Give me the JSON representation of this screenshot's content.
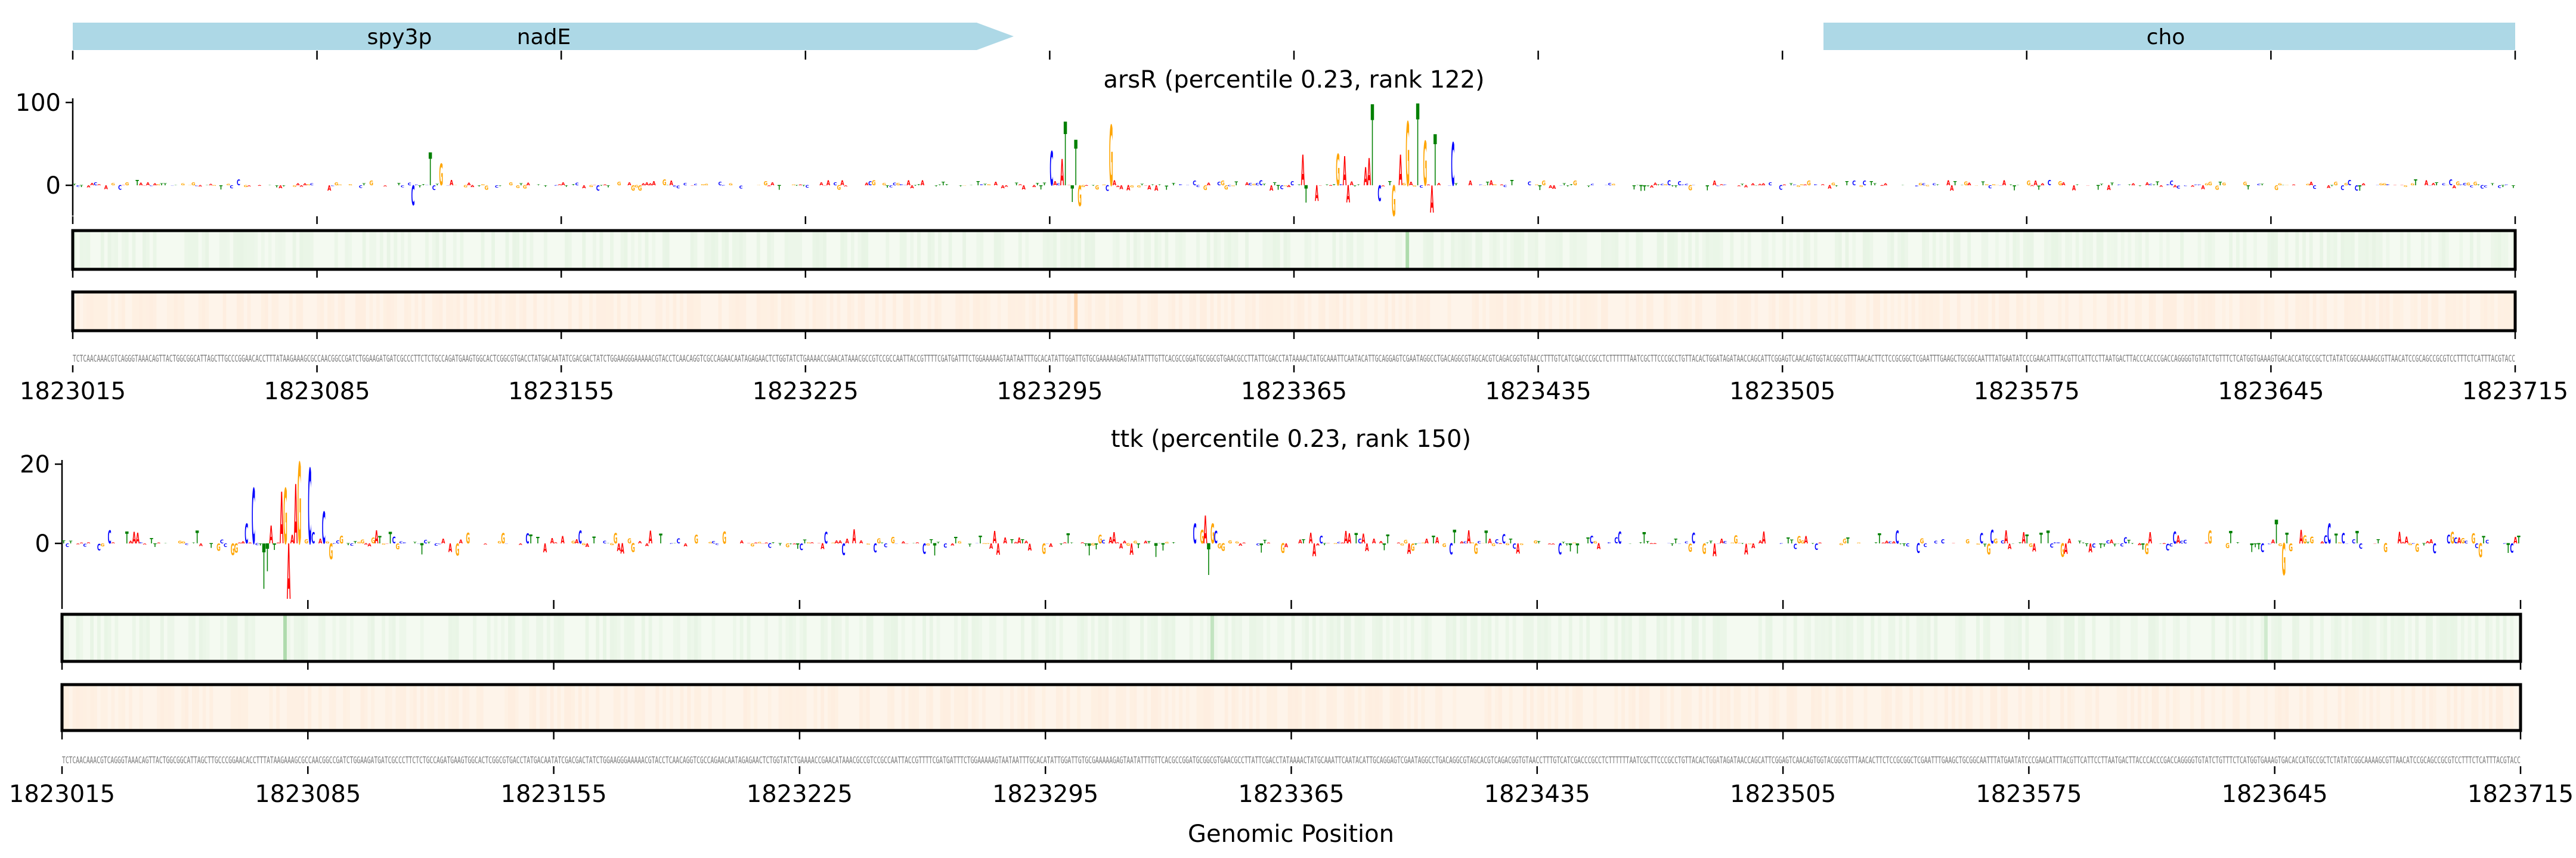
{
  "genes": [
    {
      "name": "spy3p",
      "start": 1823015,
      "end": 1823293,
      "strand": "+"
    },
    {
      "name": "nadE",
      "start": 1823015,
      "end": 1823293,
      "strand": "+"
    },
    {
      "name": "cho",
      "start": 1823520,
      "end": 1823715,
      "strand": ""
    }
  ],
  "xaxis": {
    "label": "Genomic Position",
    "range": [
      1823015,
      1823715
    ],
    "ticks": [
      "1823015",
      "1823085",
      "1823155",
      "1823225",
      "1823295",
      "1823365",
      "1823435",
      "1823505",
      "1823575",
      "1823645",
      "1823715"
    ]
  },
  "sequence": "TCTCAACAAACGTCAGGGTAAACAGTTACTGGCGGCATTAGCTTGCCCGGAACACCTTTATAAGAAAGCGCCAACGGCCGATCTGGAAGATGATCGCCCTTCTCTGCCAGATGAAGTGGCACTCGGCGTGACCTATGACAATATCGACGACTATCTGGAAGGGAAAAACGTACCTCAACAGGTCGCCAGAACAATAGAGAACTCTGGTATCTGAAAACCGAACATAAACGCCGTCCGCCAATTACCGTTTTCGATGATTTCTGGAAAAAGTAATAATTTGCACATATTGGATTGTGCGAAAAAGAGTAATATTTGTTCACGCCGGATGCGGCGTGAACGCCTTATTCGACCTATAAAACTATGCAAATTCAATACATTGCAGGAGTCGAATAGGCCTGACAGGCGTAGCACGTCAGACGGTGTAACCTTTGTCATCGACCCGCCTCTTTTTTAATCGCTTCCCGCCTGTTACACTGGATAGATAACCAGCATTCGGAGTCAACAGTGGTACGGCGTTTAACACTTCTCCGCGGCTCGAATTTGAAGCTGCGGCAATTTATGAATATCCCGAACATTTACGTTCATTCCTTAATGACTTACCCACCCGACCAGGGGTGTATCTGTTTCTCATGGTGAAAGTGACACCATGCCGCTCTATATCGGCAAAAGCGTTAACATCCGCAGCCGCGTCCTTTCTCATTTACGTACC",
  "base_colors": {
    "A": "#ff0000",
    "C": "#0000ff",
    "G": "#ffa500",
    "T": "#008000"
  },
  "chart_data": [
    {
      "type": "sequence-logo",
      "title": "arsR (percentile 0.23, rank 122)",
      "ylim": [
        -37,
        100
      ],
      "yticks": [
        "0",
        "100"
      ],
      "ytick_values": [
        0,
        100
      ],
      "peaks": [
        [
          97,
          -24
        ],
        [
          102,
          40
        ],
        [
          105,
          26
        ],
        [
          280,
          41
        ],
        [
          283,
          32
        ],
        [
          284,
          77
        ],
        [
          286,
          -20
        ],
        [
          287,
          55
        ],
        [
          288,
          -25
        ],
        [
          297,
          73
        ],
        [
          352,
          37
        ],
        [
          353,
          -21
        ],
        [
          356,
          -19
        ],
        [
          362,
          38
        ],
        [
          364,
          35
        ],
        [
          365,
          -21
        ],
        [
          370,
          22
        ],
        [
          371,
          33
        ],
        [
          372,
          98
        ],
        [
          374,
          -19
        ],
        [
          378,
          -37
        ],
        [
          380,
          37
        ],
        [
          382,
          77
        ],
        [
          385,
          99
        ],
        [
          387,
          54
        ],
        [
          389,
          -33
        ],
        [
          390,
          62
        ],
        [
          395,
          52
        ]
      ],
      "heatmap_green": {
        "color": "#2ca02c",
        "base": "#f4faf1",
        "hot": [
          [
            382,
            0.35
          ]
        ]
      },
      "heatmap_orange": {
        "color": "#ff9a3c",
        "base": "#fef4ea",
        "hot": [
          [
            287,
            0.35
          ]
        ]
      }
    },
    {
      "type": "sequence-logo",
      "title": "ttk (percentile 0.23, rank 150)",
      "ylim": [
        -14,
        20
      ],
      "yticks": [
        "0",
        "20"
      ],
      "ytick_values": [
        0,
        20
      ],
      "peaks": [
        [
          52,
          5
        ],
        [
          54,
          14
        ],
        [
          57,
          -11.5
        ],
        [
          58,
          -7
        ],
        [
          59,
          4.5
        ],
        [
          62,
          13
        ],
        [
          63,
          14
        ],
        [
          64,
          -14
        ],
        [
          66,
          15
        ],
        [
          67,
          20.5
        ],
        [
          70,
          19
        ],
        [
          74,
          8
        ],
        [
          76,
          -4
        ],
        [
          322,
          5
        ],
        [
          325,
          7
        ],
        [
          326,
          -8
        ],
        [
          327,
          5
        ],
        [
          630,
          6
        ],
        [
          632,
          -8
        ],
        [
          645,
          5
        ]
      ],
      "heatmap_green": {
        "color": "#2ca02c",
        "base": "#f4faf1",
        "hot": [
          [
            63,
            0.3
          ],
          [
            327,
            0.2
          ],
          [
            627,
            0.15
          ]
        ]
      },
      "heatmap_orange": {
        "color": "#ff9a3c",
        "base": "#fef4ea",
        "hot": []
      }
    }
  ]
}
